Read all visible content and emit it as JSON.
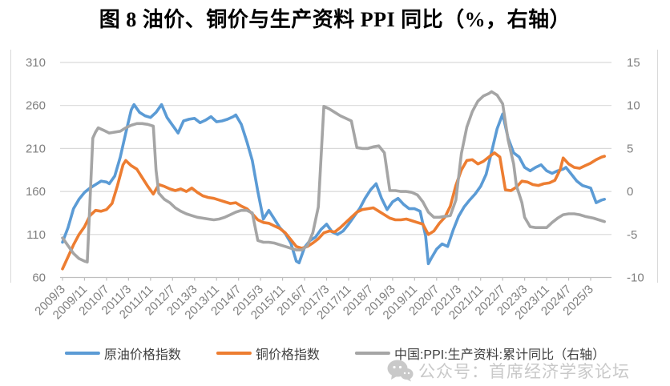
{
  "title": "图 8 油价、铜价与生产资料 PPI 同比（%，右轴）",
  "watermark": {
    "icon": "wechat-chat-bubbles-icon",
    "text": "公众号：首席经济学家论坛"
  },
  "colors": {
    "oil_line": "#5B9BD5",
    "copper_line": "#ED7D31",
    "ppi_line": "#A5A5A5",
    "gridline": "#D9D9D9",
    "axis_line": "#BFBFBF",
    "axis_text": "#7F7F7F",
    "legend_text": "#404040",
    "watermark": "#C9C9C9",
    "title_text": "#000000"
  },
  "chart_data": {
    "type": "line",
    "title": "图 8 油价、铜价与生产资料 PPI 同比（%，右轴）",
    "grid": true,
    "legend_position": "bottom",
    "x_start": "2009/3",
    "x_step_months": 1,
    "x_tick_labels": [
      "2009/3",
      "2009/11",
      "2010/7",
      "2011/3",
      "2011/11",
      "2012/7",
      "2013/3",
      "2013/11",
      "2014/7",
      "2015/3",
      "2015/11",
      "2016/7",
      "2017/3",
      "2017/11",
      "2018/7",
      "2019/3",
      "2019/11",
      "2020/7",
      "2021/3",
      "2021/11",
      "2022/7",
      "2023/3",
      "2023/11",
      "2024/7",
      "2025/3"
    ],
    "x_tick_every_months": 8,
    "left_axis": {
      "ticks": [
        60,
        110,
        160,
        210,
        260,
        310
      ],
      "range": [
        60,
        310
      ]
    },
    "right_axis": {
      "ticks": [
        -10,
        -5,
        0,
        5,
        10,
        15
      ],
      "range": [
        -10,
        15
      ]
    },
    "series": [
      {
        "name": "原油价格指数",
        "color": "#5B9BD5",
        "axis": "left",
        "points": [
          [
            0,
            101
          ],
          [
            2,
            118
          ],
          [
            4,
            140
          ],
          [
            6,
            151
          ],
          [
            8,
            159
          ],
          [
            10,
            164
          ],
          [
            12,
            168
          ],
          [
            14,
            172
          ],
          [
            16,
            171
          ],
          [
            17,
            169
          ],
          [
            19,
            178
          ],
          [
            21,
            200
          ],
          [
            23,
            228
          ],
          [
            25,
            255
          ],
          [
            26,
            261
          ],
          [
            28,
            252
          ],
          [
            30,
            248
          ],
          [
            32,
            246
          ],
          [
            34,
            252
          ],
          [
            36,
            261
          ],
          [
            38,
            246
          ],
          [
            40,
            237
          ],
          [
            42,
            228
          ],
          [
            44,
            242
          ],
          [
            46,
            244
          ],
          [
            48,
            245
          ],
          [
            50,
            240
          ],
          [
            52,
            243
          ],
          [
            54,
            247
          ],
          [
            56,
            241
          ],
          [
            58,
            242
          ],
          [
            60,
            244
          ],
          [
            62,
            247
          ],
          [
            63,
            249
          ],
          [
            65,
            238
          ],
          [
            67,
            218
          ],
          [
            69,
            196
          ],
          [
            71,
            160
          ],
          [
            73,
            128
          ],
          [
            75,
            138
          ],
          [
            77,
            128
          ],
          [
            79,
            118
          ],
          [
            81,
            111
          ],
          [
            83,
            100
          ],
          [
            85,
            79
          ],
          [
            86,
            77
          ],
          [
            88,
            95
          ],
          [
            90,
            103
          ],
          [
            92,
            107
          ],
          [
            94,
            116
          ],
          [
            96,
            122
          ],
          [
            98,
            113
          ],
          [
            100,
            110
          ],
          [
            102,
            114
          ],
          [
            104,
            122
          ],
          [
            106,
            131
          ],
          [
            108,
            140
          ],
          [
            110,
            152
          ],
          [
            112,
            162
          ],
          [
            114,
            169
          ],
          [
            116,
            152
          ],
          [
            118,
            139
          ],
          [
            120,
            148
          ],
          [
            122,
            152
          ],
          [
            124,
            145
          ],
          [
            126,
            140
          ],
          [
            128,
            140
          ],
          [
            130,
            137
          ],
          [
            132,
            108
          ],
          [
            133,
            76
          ],
          [
            134,
            82
          ],
          [
            136,
            93
          ],
          [
            138,
            99
          ],
          [
            140,
            96
          ],
          [
            142,
            115
          ],
          [
            144,
            131
          ],
          [
            146,
            142
          ],
          [
            148,
            150
          ],
          [
            150,
            157
          ],
          [
            152,
            166
          ],
          [
            154,
            180
          ],
          [
            156,
            206
          ],
          [
            158,
            233
          ],
          [
            160,
            250
          ],
          [
            162,
            222
          ],
          [
            164,
            205
          ],
          [
            166,
            200
          ],
          [
            168,
            188
          ],
          [
            170,
            184
          ],
          [
            172,
            188
          ],
          [
            174,
            191
          ],
          [
            176,
            184
          ],
          [
            178,
            181
          ],
          [
            180,
            184
          ],
          [
            182,
            186
          ],
          [
            183,
            188
          ],
          [
            185,
            180
          ],
          [
            187,
            172
          ],
          [
            189,
            167
          ],
          [
            191,
            165
          ],
          [
            192,
            164
          ],
          [
            194,
            147
          ],
          [
            196,
            150
          ],
          [
            197,
            151
          ]
        ]
      },
      {
        "name": "铜价格指数",
        "color": "#ED7D31",
        "axis": "left",
        "points": [
          [
            0,
            70
          ],
          [
            2,
            84
          ],
          [
            4,
            98
          ],
          [
            6,
            110
          ],
          [
            8,
            119
          ],
          [
            10,
            132
          ],
          [
            12,
            138
          ],
          [
            14,
            137
          ],
          [
            16,
            139
          ],
          [
            18,
            146
          ],
          [
            20,
            167
          ],
          [
            22,
            191
          ],
          [
            23,
            196
          ],
          [
            25,
            190
          ],
          [
            27,
            186
          ],
          [
            29,
            176
          ],
          [
            31,
            166
          ],
          [
            33,
            157
          ],
          [
            35,
            168
          ],
          [
            37,
            166
          ],
          [
            39,
            163
          ],
          [
            41,
            161
          ],
          [
            43,
            163
          ],
          [
            45,
            160
          ],
          [
            47,
            164
          ],
          [
            49,
            159
          ],
          [
            51,
            155
          ],
          [
            53,
            153
          ],
          [
            55,
            152
          ],
          [
            57,
            150
          ],
          [
            59,
            148
          ],
          [
            61,
            146
          ],
          [
            63,
            147
          ],
          [
            65,
            143
          ],
          [
            67,
            140
          ],
          [
            69,
            134
          ],
          [
            71,
            127
          ],
          [
            73,
            124
          ],
          [
            75,
            123
          ],
          [
            77,
            120
          ],
          [
            79,
            117
          ],
          [
            81,
            112
          ],
          [
            83,
            104
          ],
          [
            85,
            96
          ],
          [
            87,
            94
          ],
          [
            89,
            96
          ],
          [
            91,
            100
          ],
          [
            93,
            105
          ],
          [
            95,
            112
          ],
          [
            97,
            114
          ],
          [
            99,
            113
          ],
          [
            101,
            118
          ],
          [
            103,
            124
          ],
          [
            105,
            130
          ],
          [
            107,
            136
          ],
          [
            109,
            139
          ],
          [
            111,
            140
          ],
          [
            113,
            141
          ],
          [
            115,
            137
          ],
          [
            117,
            133
          ],
          [
            119,
            129
          ],
          [
            121,
            127
          ],
          [
            123,
            127
          ],
          [
            125,
            128
          ],
          [
            127,
            126
          ],
          [
            129,
            124
          ],
          [
            131,
            122
          ],
          [
            133,
            110
          ],
          [
            135,
            114
          ],
          [
            137,
            123
          ],
          [
            139,
            130
          ],
          [
            141,
            143
          ],
          [
            143,
            167
          ],
          [
            145,
            185
          ],
          [
            147,
            196
          ],
          [
            149,
            197
          ],
          [
            151,
            192
          ],
          [
            153,
            195
          ],
          [
            155,
            200
          ],
          [
            157,
            205
          ],
          [
            159,
            200
          ],
          [
            161,
            162
          ],
          [
            163,
            161
          ],
          [
            165,
            165
          ],
          [
            167,
            172
          ],
          [
            169,
            171
          ],
          [
            171,
            168
          ],
          [
            173,
            167
          ],
          [
            175,
            169
          ],
          [
            177,
            170
          ],
          [
            179,
            173
          ],
          [
            181,
            186
          ],
          [
            182,
            199
          ],
          [
            184,
            192
          ],
          [
            186,
            188
          ],
          [
            188,
            187
          ],
          [
            190,
            190
          ],
          [
            192,
            193
          ],
          [
            194,
            197
          ],
          [
            196,
            200
          ],
          [
            197,
            201
          ]
        ]
      },
      {
        "name": "中国:PPI:生产资料:累计同比（右轴）",
        "color": "#A5A5A5",
        "axis": "right",
        "points": [
          [
            0,
            -5.4
          ],
          [
            2,
            -6.3
          ],
          [
            4,
            -7.2
          ],
          [
            6,
            -7.8
          ],
          [
            8,
            -8.1
          ],
          [
            9,
            -8.2
          ],
          [
            11,
            6.2
          ],
          [
            12,
            6.9
          ],
          [
            13,
            7.4
          ],
          [
            15,
            7.1
          ],
          [
            17,
            6.8
          ],
          [
            19,
            6.9
          ],
          [
            21,
            7.0
          ],
          [
            23,
            7.4
          ],
          [
            25,
            7.7
          ],
          [
            27,
            7.9
          ],
          [
            29,
            7.9
          ],
          [
            31,
            7.8
          ],
          [
            33,
            7.6
          ],
          [
            34,
            2.5
          ],
          [
            35,
            -0.2
          ],
          [
            37,
            -0.9
          ],
          [
            39,
            -1.3
          ],
          [
            41,
            -1.9
          ],
          [
            43,
            -2.3
          ],
          [
            45,
            -2.6
          ],
          [
            47,
            -2.8
          ],
          [
            49,
            -3.0
          ],
          [
            51,
            -3.1
          ],
          [
            53,
            -3.2
          ],
          [
            55,
            -3.3
          ],
          [
            57,
            -3.2
          ],
          [
            59,
            -3.0
          ],
          [
            61,
            -2.7
          ],
          [
            63,
            -2.4
          ],
          [
            65,
            -2.2
          ],
          [
            67,
            -2.2
          ],
          [
            69,
            -2.5
          ],
          [
            71,
            -5.7
          ],
          [
            73,
            -5.9
          ],
          [
            75,
            -5.9
          ],
          [
            77,
            -6.0
          ],
          [
            79,
            -6.2
          ],
          [
            81,
            -6.4
          ],
          [
            83,
            -6.6
          ],
          [
            85,
            -6.8
          ],
          [
            87,
            -6.8
          ],
          [
            89,
            -6.3
          ],
          [
            91,
            -4.8
          ],
          [
            93,
            -1.8
          ],
          [
            95,
            9.9
          ],
          [
            97,
            9.6
          ],
          [
            99,
            9.2
          ],
          [
            101,
            8.8
          ],
          [
            103,
            8.5
          ],
          [
            105,
            8.2
          ],
          [
            107,
            5.1
          ],
          [
            109,
            5.0
          ],
          [
            111,
            5.0
          ],
          [
            113,
            5.2
          ],
          [
            115,
            5.3
          ],
          [
            117,
            4.5
          ],
          [
            119,
            0.1
          ],
          [
            121,
            0.1
          ],
          [
            123,
            0.0
          ],
          [
            125,
            0.0
          ],
          [
            127,
            -0.1
          ],
          [
            129,
            -0.4
          ],
          [
            131,
            -1.2
          ],
          [
            133,
            -2.4
          ],
          [
            135,
            -3.0
          ],
          [
            137,
            -3.0
          ],
          [
            139,
            -2.9
          ],
          [
            141,
            -2.8
          ],
          [
            143,
            -1.0
          ],
          [
            145,
            4.4
          ],
          [
            147,
            7.5
          ],
          [
            149,
            9.3
          ],
          [
            151,
            10.5
          ],
          [
            153,
            11.1
          ],
          [
            155,
            11.4
          ],
          [
            156,
            11.6
          ],
          [
            158,
            11.2
          ],
          [
            160,
            10.2
          ],
          [
            162,
            6.0
          ],
          [
            164,
            3.2
          ],
          [
            165,
            0.7
          ],
          [
            167,
            -1.3
          ],
          [
            168,
            -3.0
          ],
          [
            170,
            -4.1
          ],
          [
            172,
            -4.2
          ],
          [
            174,
            -4.2
          ],
          [
            176,
            -4.2
          ],
          [
            178,
            -3.6
          ],
          [
            180,
            -3.1
          ],
          [
            182,
            -2.7
          ],
          [
            184,
            -2.6
          ],
          [
            186,
            -2.6
          ],
          [
            188,
            -2.7
          ],
          [
            190,
            -2.9
          ],
          [
            193,
            -3.1
          ],
          [
            196,
            -3.4
          ],
          [
            197,
            -3.5
          ]
        ]
      }
    ]
  }
}
